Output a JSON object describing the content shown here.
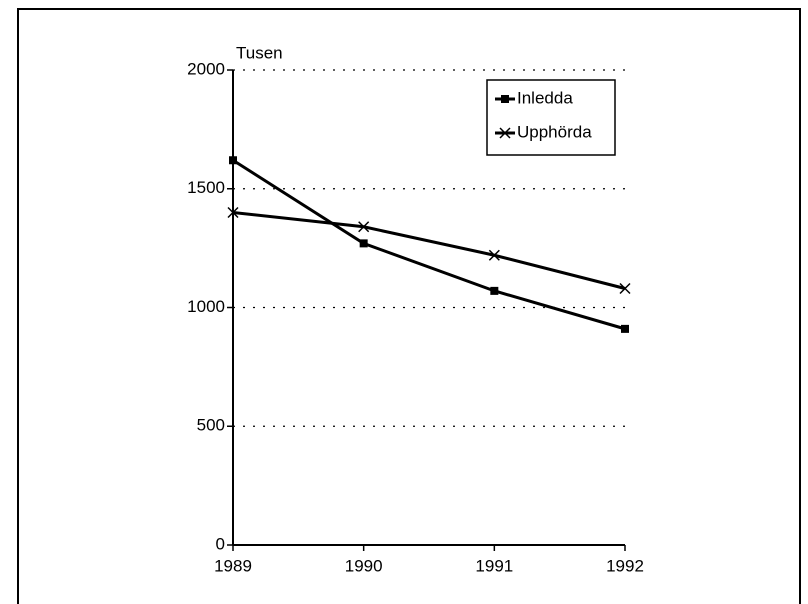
{
  "chart_data": {
    "type": "line",
    "y_label": "Tusen",
    "categories": [
      "1989",
      "1990",
      "1991",
      "1992"
    ],
    "series": [
      {
        "name": "Inledda",
        "color": "#000000",
        "marker": "square",
        "values": [
          1620,
          1270,
          1070,
          910
        ]
      },
      {
        "name": "Upphörda",
        "color": "#000000",
        "marker": "x",
        "values": [
          1400,
          1340,
          1220,
          1080
        ]
      }
    ],
    "ylim": [
      0,
      2000
    ],
    "yticks": [
      0,
      500,
      1000,
      1500,
      2000
    ],
    "grid": true,
    "legend": "upper right"
  }
}
